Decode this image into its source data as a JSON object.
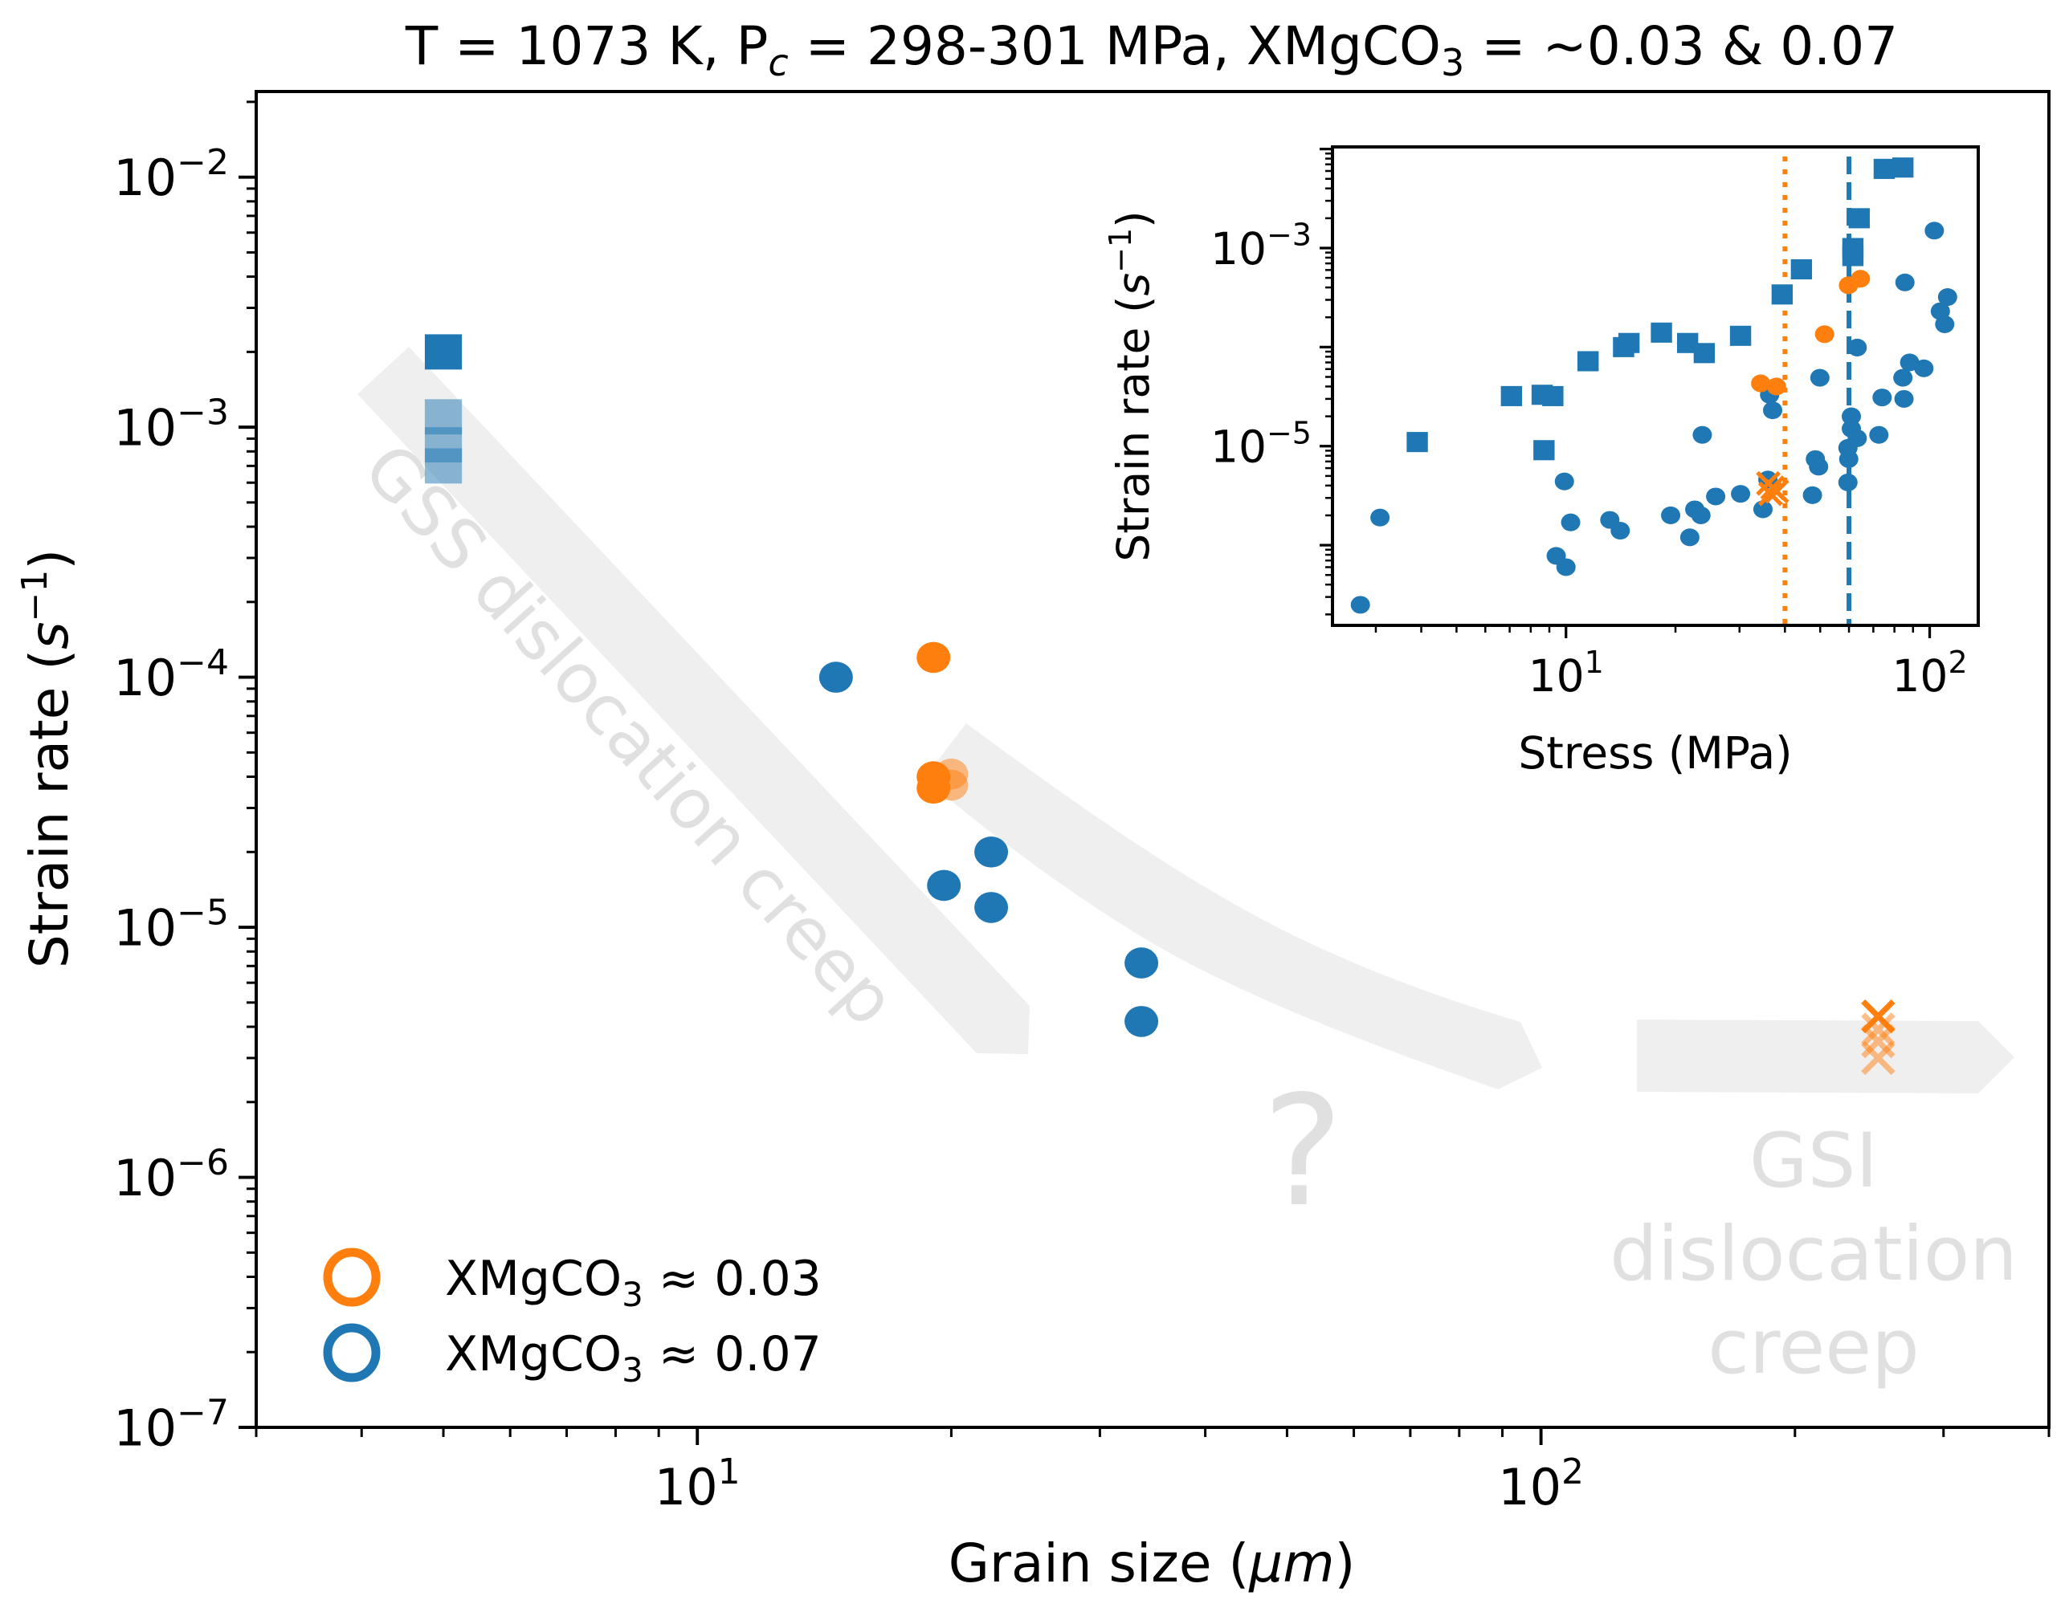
{
  "chart_data": [
    {
      "type": "scatter",
      "id": "main",
      "title": "T = 1073 K, P_c = 298-301 MPa, XMgCO3 = ~0.03 & 0.07",
      "title_parts": {
        "pre": "T = 1073 K, P",
        "sub1": "c",
        "mid": " = 298-301 MPa, XMgCO",
        "sub2": "3",
        "post": " = ~0.03 & 0.07"
      },
      "xlabel": "Grain size (μm)",
      "xlabel_parts": {
        "pre": "Grain size (",
        "italic": "μm",
        "post": ")"
      },
      "ylabel": "Strain rate (s^-1)",
      "ylabel_parts": {
        "pre": "Strain rate (",
        "italic": "s",
        "sup": "−1",
        "post": ")"
      },
      "xscale": "log",
      "yscale": "log",
      "xlim": [
        3.0,
        400
      ],
      "ylim": [
        1e-07,
        0.022
      ],
      "grid": false,
      "xticks": [
        {
          "value": 10,
          "base": "10",
          "exp": "1"
        },
        {
          "value": 100,
          "base": "10",
          "exp": "2"
        }
      ],
      "yticks": [
        {
          "value": 0.01,
          "base": "10",
          "exp": "−2"
        },
        {
          "value": 0.001,
          "base": "10",
          "exp": "−3"
        },
        {
          "value": 0.0001,
          "base": "10",
          "exp": "−4"
        },
        {
          "value": 1e-05,
          "base": "10",
          "exp": "−5"
        },
        {
          "value": 1e-06,
          "base": "10",
          "exp": "−6"
        },
        {
          "value": 1e-07,
          "base": "10",
          "exp": "−7"
        }
      ],
      "colors": {
        "blue": "#1f77b4",
        "orange": "#ff7f0e",
        "blue_light": "#8fb2cf",
        "orange_light": "#f2b88a",
        "arrow": "#efefef",
        "annotation": "#e0e0e0"
      },
      "series": [
        {
          "name": "XMgCO3 ≈ 0.07 (squares)",
          "marker": "square",
          "color": "#1f77b4",
          "points": [
            {
              "x": 5.0,
              "y": 0.002,
              "alpha": 1.0
            },
            {
              "x": 5.0,
              "y": 0.0011,
              "alpha": 0.5
            },
            {
              "x": 5.0,
              "y": 0.00085,
              "alpha": 0.5
            },
            {
              "x": 5.0,
              "y": 0.0007,
              "alpha": 0.5
            }
          ]
        },
        {
          "name": "XMgCO3 ≈ 0.07",
          "marker": "circle",
          "color": "#1f77b4",
          "points": [
            {
              "x": 14.6,
              "y": 0.0001,
              "alpha": 1.0
            },
            {
              "x": 22.3,
              "y": 2e-05,
              "alpha": 1.0
            },
            {
              "x": 19.6,
              "y": 1.47e-05,
              "alpha": 1.0
            },
            {
              "x": 22.3,
              "y": 1.2e-05,
              "alpha": 1.0
            },
            {
              "x": 33.6,
              "y": 7.2e-06,
              "alpha": 1.0
            },
            {
              "x": 33.6,
              "y": 4.2e-06,
              "alpha": 1.0
            }
          ]
        },
        {
          "name": "XMgCO3 ≈ 0.03",
          "marker": "circle",
          "color": "#ff7f0e",
          "points": [
            {
              "x": 19.05,
              "y": 0.00012,
              "alpha": 1.0
            },
            {
              "x": 19.05,
              "y": 3.6e-05,
              "alpha": 1.0
            },
            {
              "x": 19.05,
              "y": 4e-05,
              "alpha": 1.0
            },
            {
              "x": 20.0,
              "y": 4.1e-05,
              "alpha": 0.5
            },
            {
              "x": 20.0,
              "y": 3.7e-05,
              "alpha": 0.5
            }
          ]
        },
        {
          "name": "XMgCO3 ≈ 0.03 (crosses)",
          "marker": "x",
          "color": "#ff7f0e",
          "points": [
            {
              "x": 251,
              "y": 4.4e-06,
              "alpha": 1.0
            },
            {
              "x": 251,
              "y": 3.9e-06,
              "alpha": 0.5
            },
            {
              "x": 251,
              "y": 3.5e-06,
              "alpha": 0.5
            },
            {
              "x": 251,
              "y": 3e-06,
              "alpha": 0.5
            }
          ]
        }
      ],
      "legend": {
        "placement": "lower-left",
        "entries": [
          {
            "label_pre": "XMgCO",
            "label_sub": "3",
            "label_post": " ≈ 0.03",
            "label": "XMgCO3 ≈ 0.03",
            "color": "#ff7f0e",
            "marker": "open-circle"
          },
          {
            "label_pre": "XMgCO",
            "label_sub": "3",
            "label_post": " ≈ 0.07",
            "label": "XMgCO3 ≈ 0.07",
            "color": "#1f77b4",
            "marker": "open-circle"
          }
        ]
      },
      "annotations": [
        {
          "id": "gss",
          "text": "GSS dislocation creep",
          "angle_deg": -48
        },
        {
          "id": "question",
          "text": "?"
        },
        {
          "id": "gsi",
          "lines": [
            "GSI",
            "dislocation",
            "creep"
          ]
        }
      ],
      "arrows": [
        {
          "id": "gss-arrow",
          "direction": "down-right",
          "from": {
            "x": 3.9,
            "y": 0.0015
          },
          "to": {
            "x": 17.0,
            "y": 3.6e-06
          }
        },
        {
          "id": "transition-arrow",
          "direction": "right",
          "from": {
            "x": 19.5,
            "y": 4.5e-05
          },
          "to": {
            "x": 110,
            "y": 2.8e-06
          }
        },
        {
          "id": "gsi-arrow",
          "direction": "right",
          "from": {
            "x": 125,
            "y": 3.2e-06
          },
          "to": {
            "x": 370,
            "y": 3.2e-06
          }
        }
      ]
    },
    {
      "type": "scatter",
      "id": "inset",
      "xlabel": "Stress (MPa)",
      "ylabel": "Strain rate (s^-1)",
      "ylabel_parts": {
        "pre": "Strain rate (",
        "italic": "s",
        "sup": "−1",
        "post": ")"
      },
      "xscale": "log",
      "yscale": "log",
      "xlim": [
        2.28,
        136
      ],
      "ylim": [
        1.55e-07,
        0.0105
      ],
      "grid": false,
      "xticks": [
        {
          "value": 10,
          "base": "10",
          "exp": "1"
        },
        {
          "value": 100,
          "base": "10",
          "exp": "2"
        }
      ],
      "yticks": [
        {
          "value": 0.001,
          "base": "10",
          "exp": "−3"
        },
        {
          "value": 1e-05,
          "base": "10",
          "exp": "−5"
        }
      ],
      "vlines": [
        {
          "x": 40,
          "style": "dotted",
          "color": "#ff7f0e"
        },
        {
          "x": 60,
          "style": "dashed",
          "color": "#1f77b4"
        }
      ],
      "series": [
        {
          "name": "XMgCO3 ≈ 0.07 (squares)",
          "marker": "square",
          "color": "#1f77b4",
          "points": [
            {
              "x": 3.9,
              "y": 1.1e-05
            },
            {
              "x": 7.08,
              "y": 3.2e-05
            },
            {
              "x": 8.6,
              "y": 3.3e-05
            },
            {
              "x": 9.2,
              "y": 3.2e-05
            },
            {
              "x": 8.7,
              "y": 9.1e-06
            },
            {
              "x": 11.5,
              "y": 7.2e-05
            },
            {
              "x": 14.4,
              "y": 0.0001
            },
            {
              "x": 14.9,
              "y": 0.00011
            },
            {
              "x": 18.3,
              "y": 0.00014
            },
            {
              "x": 21.6,
              "y": 0.00011
            },
            {
              "x": 24.0,
              "y": 8.7e-05
            },
            {
              "x": 30.2,
              "y": 0.00013
            },
            {
              "x": 39.3,
              "y": 0.00034
            },
            {
              "x": 44.4,
              "y": 0.00061
            },
            {
              "x": 61.5,
              "y": 0.00083
            },
            {
              "x": 61.5,
              "y": 0.001
            },
            {
              "x": 64.0,
              "y": 0.002
            },
            {
              "x": 75.0,
              "y": 0.0063
            },
            {
              "x": 84.4,
              "y": 0.0065
            }
          ]
        },
        {
          "name": "XMgCO3 ≈ 0.07",
          "marker": "circle",
          "color": "#1f77b4",
          "points": [
            {
              "x": 2.72,
              "y": 2.5e-07
            },
            {
              "x": 3.08,
              "y": 1.9e-06
            },
            {
              "x": 9.9,
              "y": 4.4e-06
            },
            {
              "x": 10.3,
              "y": 1.7e-06
            },
            {
              "x": 9.4,
              "y": 7.8e-07
            },
            {
              "x": 10.0,
              "y": 6e-07
            },
            {
              "x": 13.2,
              "y": 1.8e-06
            },
            {
              "x": 14.1,
              "y": 1.4e-06
            },
            {
              "x": 19.4,
              "y": 2e-06
            },
            {
              "x": 21.9,
              "y": 1.2e-06
            },
            {
              "x": 22.6,
              "y": 2.3e-06
            },
            {
              "x": 23.5,
              "y": 2e-06
            },
            {
              "x": 23.7,
              "y": 1.3e-05
            },
            {
              "x": 25.8,
              "y": 3.1e-06
            },
            {
              "x": 30.2,
              "y": 3.3e-06
            },
            {
              "x": 34.8,
              "y": 2.3e-06
            },
            {
              "x": 35.9,
              "y": 4.6e-06
            },
            {
              "x": 36.3,
              "y": 3.3e-05
            },
            {
              "x": 37.0,
              "y": 2.3e-05
            },
            {
              "x": 47.6,
              "y": 3.2e-06
            },
            {
              "x": 48.5,
              "y": 7.4e-06
            },
            {
              "x": 49.5,
              "y": 6.2e-06
            },
            {
              "x": 49.9,
              "y": 4.9e-05
            },
            {
              "x": 59.6,
              "y": 4.3e-06
            },
            {
              "x": 59.9,
              "y": 7.4e-06
            },
            {
              "x": 59.6,
              "y": 9.6e-06
            },
            {
              "x": 60.9,
              "y": 1.5e-05
            },
            {
              "x": 60.9,
              "y": 2e-05
            },
            {
              "x": 63.2,
              "y": 1.2e-05
            },
            {
              "x": 63.2,
              "y": 9.9e-05
            },
            {
              "x": 72.5,
              "y": 1.3e-05
            },
            {
              "x": 74.0,
              "y": 3.1e-05
            },
            {
              "x": 85.0,
              "y": 3e-05
            },
            {
              "x": 84.4,
              "y": 4.9e-05
            },
            {
              "x": 88.1,
              "y": 7e-05
            },
            {
              "x": 96.4,
              "y": 6.1e-05
            },
            {
              "x": 85.5,
              "y": 0.00045
            },
            {
              "x": 103,
              "y": 0.0015
            },
            {
              "x": 107,
              "y": 0.00023
            },
            {
              "x": 112,
              "y": 0.00032
            },
            {
              "x": 110,
              "y": 0.00017
            }
          ]
        },
        {
          "name": "XMgCO3 ≈ 0.03",
          "marker": "circle",
          "color": "#ff7f0e",
          "points": [
            {
              "x": 34.3,
              "y": 4.3e-05
            },
            {
              "x": 37.9,
              "y": 4e-05
            },
            {
              "x": 51.4,
              "y": 0.000135
            },
            {
              "x": 59.8,
              "y": 0.00042
            },
            {
              "x": 64.5,
              "y": 0.00049
            }
          ]
        },
        {
          "name": "XMgCO3 ≈ 0.03 (crosses)",
          "marker": "x",
          "color": "#ff7f0e",
          "points": [
            {
              "x": 36.0,
              "y": 4.2e-06
            },
            {
              "x": 37.0,
              "y": 3.8e-06
            },
            {
              "x": 38.0,
              "y": 3.5e-06
            },
            {
              "x": 36.5,
              "y": 3.3e-06
            }
          ]
        }
      ]
    }
  ]
}
